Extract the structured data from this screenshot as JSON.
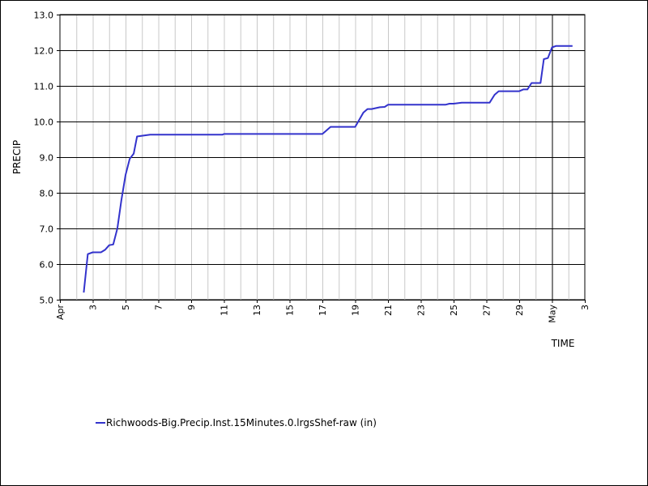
{
  "chart_data": {
    "type": "line",
    "title": "",
    "xlabel": "TIME",
    "ylabel": "PRECIP",
    "ylim": [
      5.0,
      13.0
    ],
    "xlim": [
      "Apr 1",
      "May 3"
    ],
    "grid": true,
    "legend_position": "bottom-left",
    "y_ticks": [
      "5.0",
      "6.0",
      "7.0",
      "8.0",
      "9.0",
      "10.0",
      "11.0",
      "12.0",
      "13.0"
    ],
    "x_ticks": [
      {
        "day": 1,
        "label": "Apr"
      },
      {
        "day": 3,
        "label": "3"
      },
      {
        "day": 5,
        "label": "5"
      },
      {
        "day": 7,
        "label": "7"
      },
      {
        "day": 9,
        "label": "9"
      },
      {
        "day": 11,
        "label": "11"
      },
      {
        "day": 13,
        "label": "13"
      },
      {
        "day": 15,
        "label": "15"
      },
      {
        "day": 17,
        "label": "17"
      },
      {
        "day": 19,
        "label": "19"
      },
      {
        "day": 21,
        "label": "21"
      },
      {
        "day": 23,
        "label": "23"
      },
      {
        "day": 25,
        "label": "25"
      },
      {
        "day": 27,
        "label": "27"
      },
      {
        "day": 29,
        "label": "29"
      },
      {
        "day": 31,
        "label": "May"
      },
      {
        "day": 33,
        "label": "3"
      }
    ],
    "month_boundary_day": 31,
    "series": [
      {
        "name": "Richwoods-Big.Precip.Inst.15Minutes.0.lrgsShef-raw (in)",
        "color": "#3333cc",
        "points": [
          [
            2.45,
            5.2
          ],
          [
            2.7,
            6.28
          ],
          [
            3.0,
            6.33
          ],
          [
            3.5,
            6.33
          ],
          [
            3.75,
            6.4
          ],
          [
            4.0,
            6.53
          ],
          [
            4.25,
            6.55
          ],
          [
            4.5,
            7.0
          ],
          [
            4.75,
            7.8
          ],
          [
            5.0,
            8.5
          ],
          [
            5.25,
            8.95
          ],
          [
            5.5,
            9.1
          ],
          [
            5.7,
            9.58
          ],
          [
            6.0,
            9.6
          ],
          [
            6.5,
            9.63
          ],
          [
            10.9,
            9.63
          ],
          [
            11.0,
            9.65
          ],
          [
            17.0,
            9.65
          ],
          [
            17.25,
            9.75
          ],
          [
            17.5,
            9.85
          ],
          [
            19.0,
            9.85
          ],
          [
            19.25,
            10.05
          ],
          [
            19.5,
            10.25
          ],
          [
            19.75,
            10.35
          ],
          [
            20.0,
            10.35
          ],
          [
            20.5,
            10.4
          ],
          [
            20.8,
            10.41
          ],
          [
            21.0,
            10.47
          ],
          [
            24.5,
            10.47
          ],
          [
            24.75,
            10.5
          ],
          [
            25.0,
            10.5
          ],
          [
            25.5,
            10.53
          ],
          [
            27.2,
            10.53
          ],
          [
            27.5,
            10.75
          ],
          [
            27.75,
            10.85
          ],
          [
            29.0,
            10.85
          ],
          [
            29.25,
            10.9
          ],
          [
            29.5,
            10.9
          ],
          [
            29.75,
            11.08
          ],
          [
            30.3,
            11.08
          ],
          [
            30.5,
            11.75
          ],
          [
            30.75,
            11.78
          ],
          [
            31.0,
            12.08
          ],
          [
            31.25,
            12.12
          ],
          [
            32.25,
            12.12
          ]
        ]
      }
    ]
  }
}
